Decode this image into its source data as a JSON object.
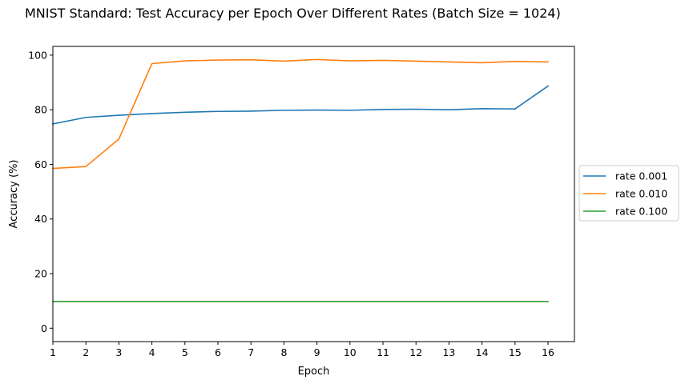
{
  "chart_data": {
    "type": "line",
    "title": "MNIST Standard: Test Accuracy per Epoch Over Different Rates (Batch Size = 1024)",
    "xlabel": "Epoch",
    "ylabel": "Accuracy (%)",
    "x": [
      1,
      2,
      3,
      4,
      5,
      6,
      7,
      8,
      9,
      10,
      11,
      12,
      13,
      14,
      15,
      16
    ],
    "x_ticks": [
      "1",
      "2",
      "3",
      "4",
      "5",
      "6",
      "7",
      "8",
      "9",
      "10",
      "11",
      "12",
      "13",
      "14",
      "15",
      "16"
    ],
    "y_ticks": [
      "0",
      "20",
      "40",
      "60",
      "80",
      "100"
    ],
    "xlim": [
      1,
      16.8
    ],
    "ylim": [
      -4.9,
      103.2
    ],
    "grid": false,
    "legend_position": "center-right-outside",
    "series": [
      {
        "name": "rate 0.001",
        "color": "#1f77b4",
        "values": [
          74.8,
          77.2,
          78.0,
          78.6,
          79.1,
          79.4,
          79.5,
          79.8,
          79.9,
          79.8,
          80.1,
          80.2,
          80.0,
          80.4,
          80.3,
          88.7
        ]
      },
      {
        "name": "rate 0.010",
        "color": "#ff7f0e",
        "values": [
          58.5,
          59.2,
          69.3,
          96.9,
          97.9,
          98.2,
          98.3,
          97.8,
          98.4,
          97.9,
          98.1,
          97.8,
          97.5,
          97.2,
          97.7,
          97.5
        ]
      },
      {
        "name": "rate 0.100",
        "color": "#2ca02c",
        "values": [
          9.8,
          9.8,
          9.8,
          9.8,
          9.8,
          9.8,
          9.8,
          9.8,
          9.8,
          9.8,
          9.8,
          9.8,
          9.8,
          9.8,
          9.8,
          9.8
        ]
      }
    ]
  }
}
